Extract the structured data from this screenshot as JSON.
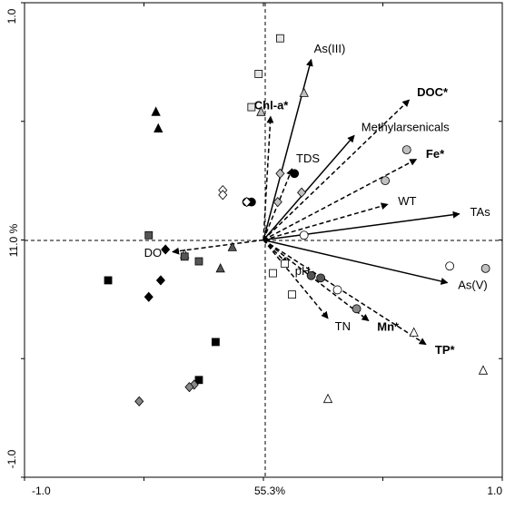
{
  "chart_data": {
    "type": "scatter",
    "title": "",
    "xlabel": "55.3%",
    "ylabel": "11.0 %",
    "xlim": [
      -1.0,
      1.0
    ],
    "ylim": [
      -1.0,
      1.0
    ],
    "x_tick_labels": [
      "-1.0",
      "1.0"
    ],
    "y_tick_labels": [
      "1.0",
      "-1.0"
    ],
    "grid": false,
    "legend": "none",
    "colors": {
      "axis": "#000000",
      "black_fill": "#000000",
      "dark_gray_fill": "#555555",
      "mid_gray_fill": "#888888",
      "light_gray_fill": "#c0c0c0",
      "very_light_fill": "#e6e6e6",
      "hollow_fill": "#ffffff"
    },
    "vectors": [
      {
        "label": "As(III)",
        "x": 0.2,
        "y": 0.76,
        "style": "solid",
        "bold": false
      },
      {
        "label": "DOC*",
        "x": 0.61,
        "y": 0.59,
        "style": "dashed",
        "bold": true
      },
      {
        "label": "Chl-a*",
        "x": 0.03,
        "y": 0.52,
        "style": "dashed",
        "bold": true
      },
      {
        "label": "Methylarsenicals",
        "x": 0.38,
        "y": 0.44,
        "style": "solid",
        "bold": false
      },
      {
        "label": "Fe*",
        "x": 0.64,
        "y": 0.34,
        "style": "dashed",
        "bold": true
      },
      {
        "label": "TDS",
        "x": 0.12,
        "y": 0.3,
        "style": "dashed",
        "bold": false
      },
      {
        "label": "WT",
        "x": 0.52,
        "y": 0.15,
        "style": "dashed",
        "bold": false
      },
      {
        "label": "TAs",
        "x": 0.82,
        "y": 0.11,
        "style": "solid",
        "bold": false
      },
      {
        "label": "DO",
        "x": -0.38,
        "y": -0.05,
        "style": "dashed",
        "bold": false
      },
      {
        "label": "pH",
        "x": 0.1,
        "y": -0.1,
        "style": "dashed",
        "bold": false
      },
      {
        "label": "As(V)",
        "x": 0.77,
        "y": -0.18,
        "style": "solid",
        "bold": false
      },
      {
        "label": "TN",
        "x": 0.27,
        "y": -0.33,
        "style": "dashed",
        "bold": false
      },
      {
        "label": "Mn*",
        "x": 0.44,
        "y": -0.34,
        "style": "dashed",
        "bold": true
      },
      {
        "label": "TP*",
        "x": 0.68,
        "y": -0.44,
        "style": "dashed",
        "bold": true
      }
    ],
    "points": [
      {
        "x": 0.07,
        "y": 0.85,
        "shape": "square",
        "fill": "very_light"
      },
      {
        "x": -0.02,
        "y": 0.7,
        "shape": "square",
        "fill": "very_light"
      },
      {
        "x": -0.05,
        "y": 0.56,
        "shape": "square",
        "fill": "very_light"
      },
      {
        "x": -0.01,
        "y": 0.54,
        "shape": "triangle",
        "fill": "light_gray"
      },
      {
        "x": 0.17,
        "y": 0.62,
        "shape": "triangle",
        "fill": "light_gray"
      },
      {
        "x": -0.45,
        "y": 0.54,
        "shape": "triangle",
        "fill": "black"
      },
      {
        "x": -0.44,
        "y": 0.47,
        "shape": "triangle",
        "fill": "black"
      },
      {
        "x": 0.13,
        "y": 0.28,
        "shape": "circle",
        "fill": "black"
      },
      {
        "x": -0.07,
        "y": 0.16,
        "shape": "circle",
        "fill": "black"
      },
      {
        "x": -0.05,
        "y": 0.16,
        "shape": "circle",
        "fill": "black"
      },
      {
        "x": -0.17,
        "y": 0.21,
        "shape": "diamond",
        "fill": "hollow"
      },
      {
        "x": -0.17,
        "y": 0.19,
        "shape": "diamond",
        "fill": "hollow"
      },
      {
        "x": -0.07,
        "y": 0.16,
        "shape": "diamond",
        "fill": "hollow"
      },
      {
        "x": 0.07,
        "y": 0.28,
        "shape": "diamond",
        "fill": "light_gray"
      },
      {
        "x": 0.16,
        "y": 0.2,
        "shape": "diamond",
        "fill": "light_gray"
      },
      {
        "x": 0.06,
        "y": 0.16,
        "shape": "diamond",
        "fill": "light_gray"
      },
      {
        "x": 0.6,
        "y": 0.38,
        "shape": "circle",
        "fill": "light_gray"
      },
      {
        "x": 0.51,
        "y": 0.25,
        "shape": "circle",
        "fill": "light_gray"
      },
      {
        "x": 0.17,
        "y": 0.02,
        "shape": "circle",
        "fill": "hollow"
      },
      {
        "x": -0.48,
        "y": 0.02,
        "shape": "square",
        "fill": "dark_gray"
      },
      {
        "x": -0.41,
        "y": -0.04,
        "shape": "diamond",
        "fill": "black"
      },
      {
        "x": -0.33,
        "y": -0.06,
        "shape": "triangle",
        "fill": "hollow"
      },
      {
        "x": -0.33,
        "y": -0.07,
        "shape": "square",
        "fill": "dark_gray"
      },
      {
        "x": -0.27,
        "y": -0.09,
        "shape": "square",
        "fill": "dark_gray"
      },
      {
        "x": -0.13,
        "y": -0.03,
        "shape": "triangle",
        "fill": "dark_gray"
      },
      {
        "x": -0.18,
        "y": -0.12,
        "shape": "triangle",
        "fill": "dark_gray"
      },
      {
        "x": -0.65,
        "y": -0.17,
        "shape": "square",
        "fill": "black"
      },
      {
        "x": -0.43,
        "y": -0.17,
        "shape": "diamond",
        "fill": "black"
      },
      {
        "x": -0.48,
        "y": -0.24,
        "shape": "diamond",
        "fill": "black"
      },
      {
        "x": 0.09,
        "y": -0.1,
        "shape": "square",
        "fill": "hollow"
      },
      {
        "x": 0.04,
        "y": -0.14,
        "shape": "square",
        "fill": "hollow"
      },
      {
        "x": 0.12,
        "y": -0.23,
        "shape": "square",
        "fill": "hollow"
      },
      {
        "x": 0.2,
        "y": -0.15,
        "shape": "circle",
        "fill": "dark_gray"
      },
      {
        "x": 0.24,
        "y": -0.16,
        "shape": "circle",
        "fill": "dark_gray"
      },
      {
        "x": 0.31,
        "y": -0.21,
        "shape": "circle",
        "fill": "hollow"
      },
      {
        "x": 0.39,
        "y": -0.29,
        "shape": "circle",
        "fill": "mid_gray"
      },
      {
        "x": 0.78,
        "y": -0.11,
        "shape": "circle",
        "fill": "hollow"
      },
      {
        "x": 0.93,
        "y": -0.12,
        "shape": "circle",
        "fill": "light_gray"
      },
      {
        "x": 0.63,
        "y": -0.39,
        "shape": "triangle",
        "fill": "hollow"
      },
      {
        "x": 0.92,
        "y": -0.55,
        "shape": "triangle",
        "fill": "hollow"
      },
      {
        "x": 0.27,
        "y": -0.67,
        "shape": "triangle",
        "fill": "hollow"
      },
      {
        "x": -0.2,
        "y": -0.43,
        "shape": "square",
        "fill": "black"
      },
      {
        "x": -0.27,
        "y": -0.59,
        "shape": "square",
        "fill": "black"
      },
      {
        "x": -0.29,
        "y": -0.61,
        "shape": "diamond",
        "fill": "mid_gray"
      },
      {
        "x": -0.31,
        "y": -0.62,
        "shape": "diamond",
        "fill": "mid_gray"
      },
      {
        "x": -0.52,
        "y": -0.68,
        "shape": "diamond",
        "fill": "mid_gray"
      }
    ]
  }
}
